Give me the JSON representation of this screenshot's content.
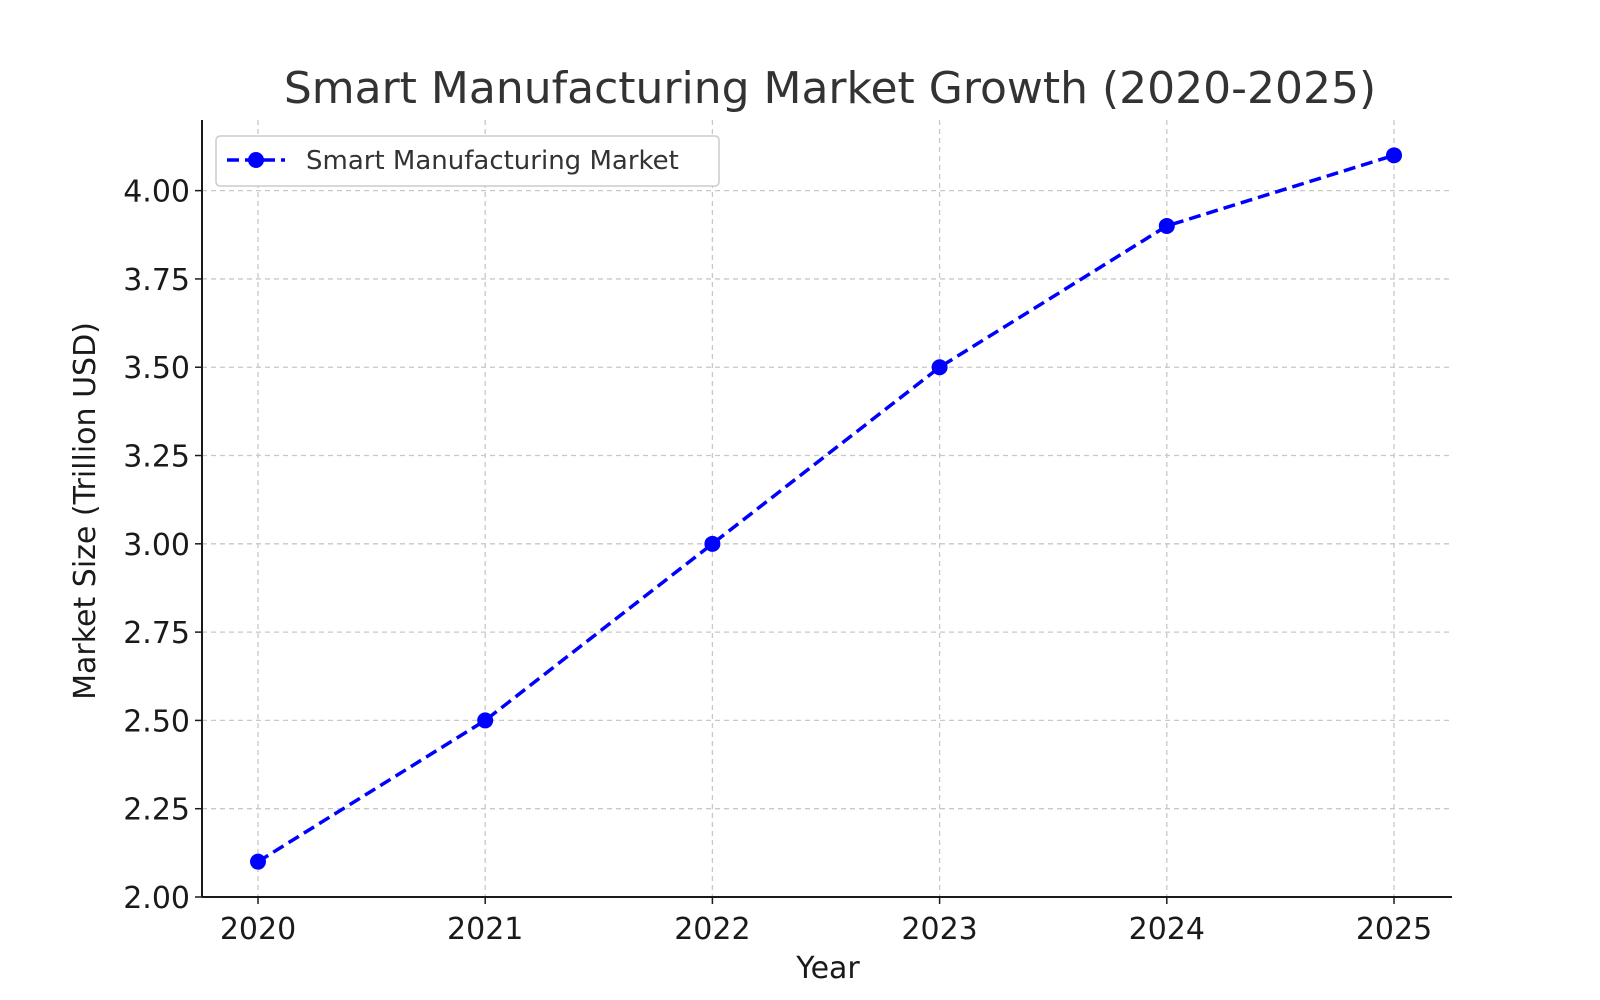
{
  "chart_data": {
    "type": "line",
    "title": "Smart Manufacturing Market Growth (2020-2025)",
    "xlabel": "Year",
    "ylabel": "Market Size (Trillion USD)",
    "categories": [
      "2020",
      "2021",
      "2022",
      "2023",
      "2024",
      "2025"
    ],
    "series": [
      {
        "name": "Smart Manufacturing Market",
        "values": [
          2.1,
          2.5,
          3.0,
          3.5,
          3.9,
          4.1
        ],
        "color": "#0000ff",
        "line_style": "dashed",
        "marker": "circle"
      }
    ],
    "ylim": [
      2.0,
      4.2
    ],
    "yticks": [
      "2.00",
      "2.25",
      "2.50",
      "2.75",
      "3.00",
      "3.25",
      "3.50",
      "3.75",
      "4.00"
    ],
    "grid": true,
    "legend": "top-left"
  }
}
